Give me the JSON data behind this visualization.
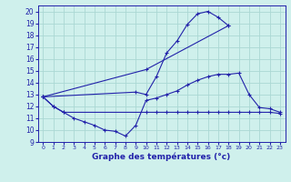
{
  "title": "Graphe des températures (°c)",
  "bg_color": "#cff0ec",
  "grid_color": "#aad8d4",
  "line_color": "#2222aa",
  "xlim": [
    -0.5,
    23.5
  ],
  "ylim": [
    9,
    20.5
  ],
  "yticks": [
    9,
    10,
    11,
    12,
    13,
    14,
    15,
    16,
    17,
    18,
    19,
    20
  ],
  "xticks": [
    0,
    1,
    2,
    3,
    4,
    5,
    6,
    7,
    8,
    9,
    10,
    11,
    12,
    13,
    14,
    15,
    16,
    17,
    18,
    19,
    20,
    21,
    22,
    23
  ],
  "series": [
    {
      "x": [
        0,
        9,
        10,
        11,
        12,
        13,
        14,
        15,
        16,
        17,
        18
      ],
      "y": [
        12.8,
        13.2,
        13.0,
        14.5,
        16.5,
        17.5,
        18.9,
        19.8,
        20.0,
        19.5,
        18.8
      ]
    },
    {
      "x": [
        0,
        1,
        2,
        3,
        4,
        5,
        6,
        7,
        8,
        9,
        10,
        11,
        12,
        13,
        14,
        15,
        16,
        17,
        18,
        19,
        20,
        21,
        22,
        23
      ],
      "y": [
        12.8,
        12.0,
        11.5,
        11.0,
        10.7,
        10.4,
        10.0,
        9.9,
        9.5,
        10.4,
        12.5,
        12.7,
        13.0,
        13.3,
        13.8,
        14.2,
        14.5,
        14.7,
        14.7,
        14.8,
        13.0,
        11.9,
        11.8,
        11.5
      ]
    },
    {
      "x": [
        0,
        10,
        18
      ],
      "y": [
        12.8,
        15.1,
        18.8
      ]
    },
    {
      "x": [
        0,
        1,
        2,
        10,
        11,
        12,
        13,
        14,
        15,
        16,
        17,
        18,
        19,
        20,
        21,
        22,
        23
      ],
      "y": [
        12.8,
        12.0,
        11.5,
        11.5,
        11.5,
        11.5,
        11.5,
        11.5,
        11.5,
        11.5,
        11.5,
        11.5,
        11.5,
        11.5,
        11.5,
        11.5,
        11.4
      ]
    }
  ]
}
